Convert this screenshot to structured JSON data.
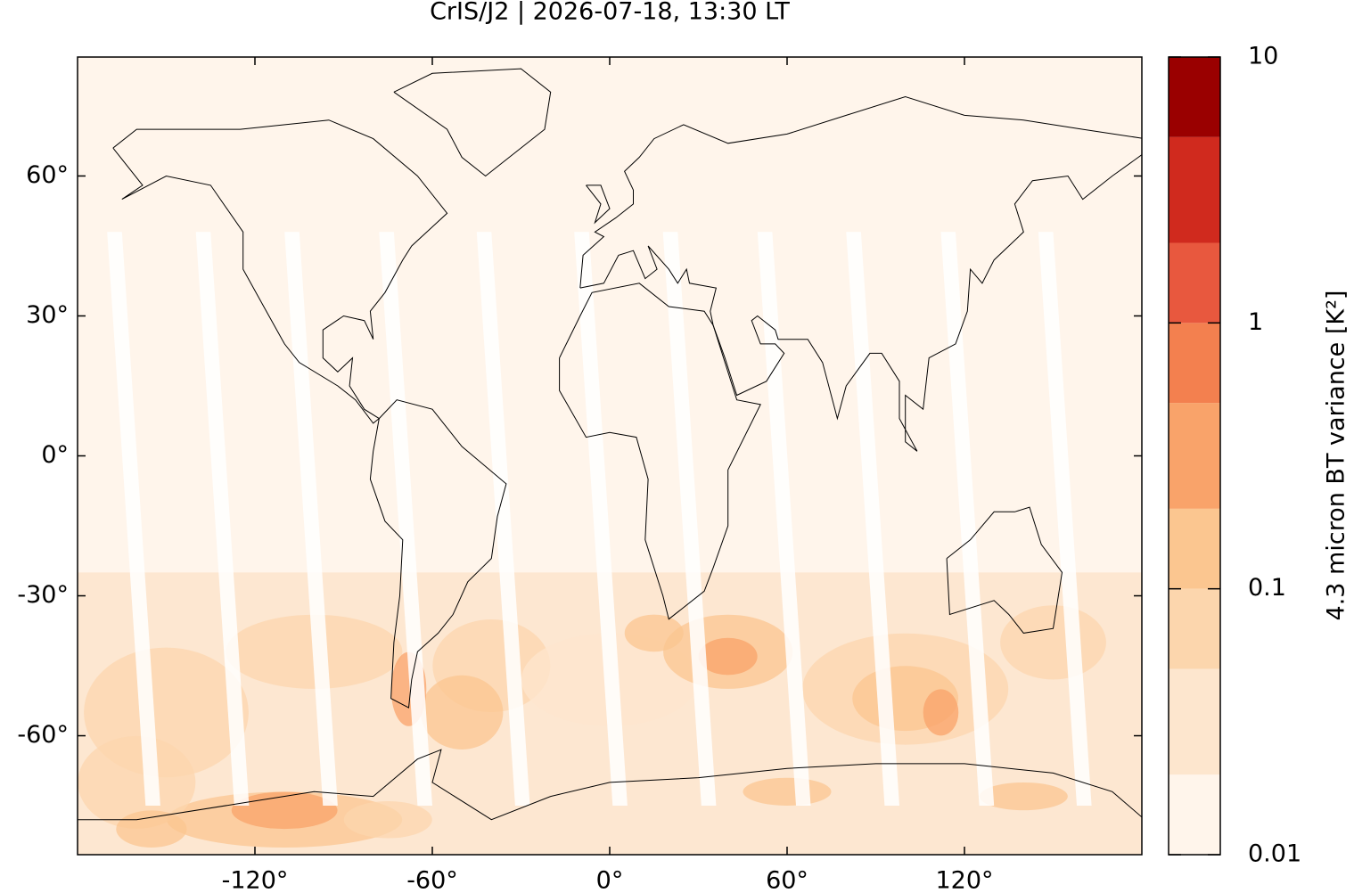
{
  "chart_data": {
    "type": "map",
    "title": "CrIS/J2 | 2026-07-18, 13:30 LT",
    "xlim": [
      -180,
      180
    ],
    "ylim": [
      -85.5,
      85.5
    ],
    "xticks": [
      {
        "value": -120,
        "label": "-120°"
      },
      {
        "value": -60,
        "label": "-60°"
      },
      {
        "value": 0,
        "label": "0°"
      },
      {
        "value": 60,
        "label": "60°"
      },
      {
        "value": 120,
        "label": "120°"
      }
    ],
    "yticks": [
      {
        "value": -60,
        "label": "-60°"
      },
      {
        "value": -30,
        "label": "-30°"
      },
      {
        "value": 0,
        "label": "0°"
      },
      {
        "value": 30,
        "label": "30°"
      },
      {
        "value": 60,
        "label": "60°"
      }
    ],
    "colorbar": {
      "label": "4.3 micron BT variance [K²]",
      "log": true,
      "lim": [
        0.01,
        10
      ],
      "levels": [
        0.01,
        0.02,
        0.05,
        0.1,
        0.2,
        0.5,
        1,
        2,
        5,
        10
      ],
      "colors": [
        "#fff5eb",
        "#fde6ce",
        "#fcd6ad",
        "#fbc690",
        "#f9a36a",
        "#f3804f",
        "#e8583e",
        "#d02a1e",
        "#9a0000"
      ],
      "ticks": [
        0.01,
        0.1,
        1,
        10
      ]
    }
  }
}
